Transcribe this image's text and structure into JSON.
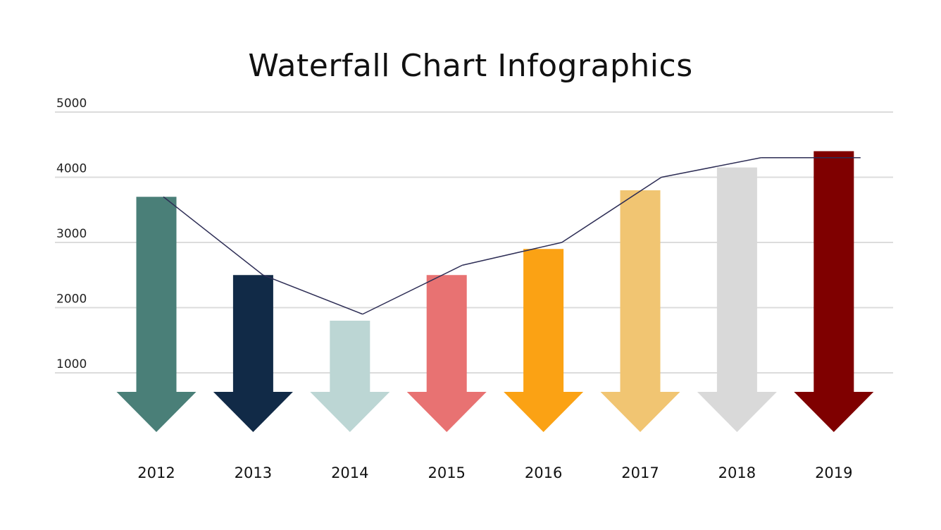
{
  "chart_data": {
    "type": "bar",
    "title": "Waterfall Chart Infographics",
    "xlabel": "",
    "ylabel": "",
    "categories": [
      "2012",
      "2013",
      "2014",
      "2015",
      "2016",
      "2017",
      "2018",
      "2019"
    ],
    "values": [
      3700,
      2500,
      1800,
      2500,
      2900,
      3800,
      4150,
      4400
    ],
    "bar_colors": [
      "#4a7f78",
      "#112a47",
      "#bcd6d4",
      "#e87272",
      "#fba214",
      "#f1c572",
      "#d9d9d9",
      "#7f0000"
    ],
    "bar_shape": "down-arrow",
    "line_series": {
      "values": [
        3700,
        2500,
        1900,
        2650,
        3000,
        4000,
        4300,
        4300
      ],
      "color": "#2d2d55"
    },
    "yticks": [
      "1000",
      "2000",
      "3000",
      "4000",
      "5000"
    ],
    "ylim": [
      1000,
      5000
    ],
    "grid": true,
    "legend": "none"
  }
}
